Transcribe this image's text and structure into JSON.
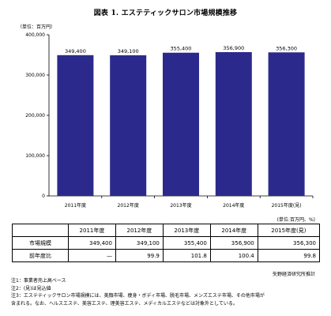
{
  "title": "図表 1. エステティックサロン市場規模推移",
  "chart_data": {
    "type": "bar",
    "unit_label": "（単位：百万円）",
    "categories": [
      "2011年度",
      "2012年度",
      "2013年度",
      "2014年度",
      "2015年度(見)"
    ],
    "values": [
      349400,
      349100,
      355400,
      356900,
      356300
    ],
    "value_labels": [
      "349,400",
      "349,100",
      "355,400",
      "356,900",
      "356,300"
    ],
    "yticks": [
      "0",
      "100,000",
      "200,000",
      "300,000",
      "400,000"
    ],
    "ylim": [
      0,
      400000
    ],
    "bar_color": "#2b2a8c",
    "grid": false
  },
  "table": {
    "unit": "(単位:百万円、%)",
    "headers": [
      "",
      "2011年度",
      "2012年度",
      "2013年度",
      "2014年度",
      "2015年度(見)"
    ],
    "rows": [
      {
        "label": "市場規模",
        "cells": [
          "349,400",
          "349,100",
          "355,400",
          "356,900",
          "356,300"
        ]
      },
      {
        "label": "前年度比",
        "cells": [
          "—",
          "99.9",
          "101.8",
          "100.4",
          "99.8"
        ]
      }
    ]
  },
  "source": "矢野経済研究所推計",
  "notes": [
    "注1：事業者売上高ベース",
    "注2：(見)は見込値",
    "注3：エステティックサロン市場規模には、美顔市場、痩身・ボディ市場、脱毛市場、メンズエステ市場、その他市場が",
    "含まれる。なお、ヘルスエステ、美容エステ、理美容エステ、メディカルエステなどは対象外としている。"
  ]
}
